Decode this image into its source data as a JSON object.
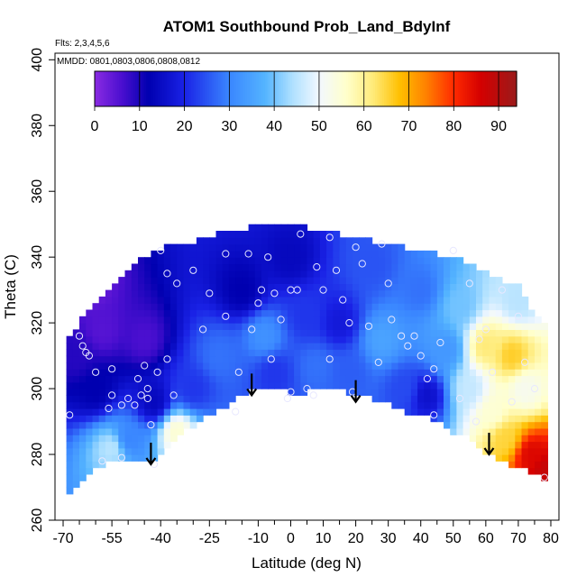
{
  "chart_data": {
    "type": "heatmap",
    "title": "ATOM1 Southbound Prob_Land_BdyInf",
    "subtitle_lines": [
      "Flts: 2,3,4,5,6",
      "MMDD: 0801,0803,0806,0808,0812"
    ],
    "xlabel": "Latitude (deg N)",
    "ylabel": "Theta (C)",
    "xlim": [
      -70,
      80
    ],
    "ylim": [
      260,
      400
    ],
    "x_major_ticks": [
      -70,
      -55,
      -40,
      -25,
      -10,
      0,
      10,
      20,
      30,
      40,
      50,
      60,
      70,
      80
    ],
    "x_minor_ticks": [
      -65,
      -60,
      -50,
      -45,
      -35,
      -30,
      -20,
      -15,
      -5,
      5,
      15,
      25,
      35,
      45,
      55,
      65,
      75
    ],
    "y_ticks": [
      260,
      280,
      300,
      320,
      340,
      360,
      380,
      400
    ],
    "colorbar": {
      "range": [
        0,
        94
      ],
      "ticks": [
        0,
        10,
        20,
        30,
        40,
        50,
        60,
        70,
        80,
        90
      ],
      "stops": [
        {
          "v": 0,
          "color": "#8a2be2"
        },
        {
          "v": 6,
          "color": "#4b0fd0"
        },
        {
          "v": 12,
          "color": "#0000b0"
        },
        {
          "v": 20,
          "color": "#1a22e6"
        },
        {
          "v": 30,
          "color": "#3a86ff"
        },
        {
          "v": 38,
          "color": "#54b4ff"
        },
        {
          "v": 44,
          "color": "#aee0ff"
        },
        {
          "v": 50,
          "color": "#f2f8ff"
        },
        {
          "v": 56,
          "color": "#ffffcc"
        },
        {
          "v": 62,
          "color": "#ffeb7a"
        },
        {
          "v": 68,
          "color": "#ffbf00"
        },
        {
          "v": 74,
          "color": "#ff7f00"
        },
        {
          "v": 80,
          "color": "#ff2a00"
        },
        {
          "v": 86,
          "color": "#d40000"
        },
        {
          "v": 94,
          "color": "#9b1b1b"
        }
      ]
    },
    "surface_boundary_theta": [
      [
        -69,
        267
      ],
      [
        -67,
        268
      ],
      [
        -63,
        273
      ],
      [
        -58,
        277
      ],
      [
        -53,
        278
      ],
      [
        -49,
        279
      ],
      [
        -45,
        279
      ],
      [
        -42,
        279
      ],
      [
        -40,
        281
      ],
      [
        -37,
        284
      ],
      [
        -33,
        287
      ],
      [
        -28,
        290
      ],
      [
        -23,
        293
      ],
      [
        -18,
        296
      ],
      [
        -13,
        299
      ],
      [
        -8,
        300
      ],
      [
        -3,
        300
      ],
      [
        0,
        299
      ],
      [
        5,
        299
      ],
      [
        10,
        300
      ],
      [
        15,
        300
      ],
      [
        20,
        298
      ],
      [
        25,
        297
      ],
      [
        30,
        296
      ],
      [
        35,
        293
      ],
      [
        40,
        292
      ],
      [
        45,
        290
      ],
      [
        50,
        287
      ],
      [
        55,
        285
      ],
      [
        60,
        280
      ],
      [
        65,
        278
      ],
      [
        70,
        276
      ],
      [
        75,
        274
      ],
      [
        79,
        272
      ]
    ],
    "top_boundary_theta": [
      [
        -69,
        313
      ],
      [
        -67,
        317
      ],
      [
        -63,
        323
      ],
      [
        -58,
        328
      ],
      [
        -53,
        333
      ],
      [
        -48,
        338
      ],
      [
        -43,
        341
      ],
      [
        -38,
        343
      ],
      [
        -33,
        344
      ],
      [
        -28,
        345
      ],
      [
        -23,
        347
      ],
      [
        -18,
        348
      ],
      [
        -13,
        349
      ],
      [
        -8,
        350
      ],
      [
        -3,
        350
      ],
      [
        0,
        350
      ],
      [
        5,
        349
      ],
      [
        10,
        348
      ],
      [
        15,
        347
      ],
      [
        20,
        346
      ],
      [
        25,
        345
      ],
      [
        30,
        344
      ],
      [
        35,
        343
      ],
      [
        40,
        342
      ],
      [
        45,
        341
      ],
      [
        50,
        340
      ],
      [
        55,
        338
      ],
      [
        60,
        335
      ],
      [
        65,
        333
      ],
      [
        70,
        331
      ],
      [
        75,
        323
      ],
      [
        79,
        318
      ]
    ],
    "probability_anchors": [
      {
        "lat": -62,
        "theta": 332,
        "p": 3
      },
      {
        "lat": -58,
        "theta": 318,
        "p": 5
      },
      {
        "lat": -66,
        "theta": 310,
        "p": 9
      },
      {
        "lat": -60,
        "theta": 300,
        "p": 12
      },
      {
        "lat": -55,
        "theta": 282,
        "p": 45
      },
      {
        "lat": -50,
        "theta": 285,
        "p": 30
      },
      {
        "lat": -45,
        "theta": 315,
        "p": 6
      },
      {
        "lat": -42,
        "theta": 296,
        "p": 14
      },
      {
        "lat": -35,
        "theta": 287,
        "p": 55
      },
      {
        "lat": -30,
        "theta": 300,
        "p": 22
      },
      {
        "lat": -22,
        "theta": 310,
        "p": 28
      },
      {
        "lat": -15,
        "theta": 330,
        "p": 12
      },
      {
        "lat": -8,
        "theta": 316,
        "p": 32
      },
      {
        "lat": -5,
        "theta": 305,
        "p": 22
      },
      {
        "lat": 0,
        "theta": 340,
        "p": 14
      },
      {
        "lat": 5,
        "theta": 322,
        "p": 22
      },
      {
        "lat": 8,
        "theta": 307,
        "p": 28
      },
      {
        "lat": 15,
        "theta": 320,
        "p": 18
      },
      {
        "lat": 18,
        "theta": 305,
        "p": 26
      },
      {
        "lat": 25,
        "theta": 338,
        "p": 25
      },
      {
        "lat": 28,
        "theta": 315,
        "p": 35
      },
      {
        "lat": 35,
        "theta": 300,
        "p": 24
      },
      {
        "lat": 40,
        "theta": 330,
        "p": 28
      },
      {
        "lat": 42,
        "theta": 298,
        "p": 16
      },
      {
        "lat": 48,
        "theta": 312,
        "p": 33
      },
      {
        "lat": 52,
        "theta": 325,
        "p": 40
      },
      {
        "lat": 55,
        "theta": 300,
        "p": 46
      },
      {
        "lat": 60,
        "theta": 313,
        "p": 62
      },
      {
        "lat": 62,
        "theta": 293,
        "p": 55
      },
      {
        "lat": 68,
        "theta": 310,
        "p": 66
      },
      {
        "lat": 66,
        "theta": 285,
        "p": 65
      },
      {
        "lat": 72,
        "theta": 300,
        "p": 52
      },
      {
        "lat": 74,
        "theta": 280,
        "p": 85
      },
      {
        "lat": 78,
        "theta": 275,
        "p": 88
      },
      {
        "lat": 70,
        "theta": 327,
        "p": 45
      }
    ],
    "observations": [
      [
        -65,
        316
      ],
      [
        -64,
        313
      ],
      [
        -63,
        311
      ],
      [
        -62,
        310
      ],
      [
        -60,
        305
      ],
      [
        -55,
        306
      ],
      [
        -55,
        298
      ],
      [
        -52,
        295
      ],
      [
        -50,
        297
      ],
      [
        -46,
        298
      ],
      [
        -44,
        300
      ],
      [
        -47,
        303
      ],
      [
        -45,
        307
      ],
      [
        -41,
        305
      ],
      [
        -38,
        309
      ],
      [
        -36,
        298
      ],
      [
        -48,
        295
      ],
      [
        -44,
        297
      ],
      [
        -40,
        342
      ],
      [
        -38,
        335
      ],
      [
        -27,
        318
      ],
      [
        -20,
        341
      ],
      [
        -13,
        341
      ],
      [
        -10,
        326
      ],
      [
        -7,
        340
      ],
      [
        -5,
        329
      ],
      [
        -3,
        321
      ],
      [
        0,
        330
      ],
      [
        2,
        330
      ],
      [
        -1,
        297
      ],
      [
        0,
        299
      ],
      [
        5,
        300
      ],
      [
        10,
        330
      ],
      [
        12,
        346
      ],
      [
        14,
        336
      ],
      [
        16,
        327
      ],
      [
        18,
        320
      ],
      [
        20,
        343
      ],
      [
        22,
        338
      ],
      [
        28,
        344
      ],
      [
        30,
        332
      ],
      [
        34,
        316
      ],
      [
        38,
        316
      ],
      [
        40,
        310
      ],
      [
        42,
        303
      ],
      [
        44,
        292
      ],
      [
        46,
        314
      ],
      [
        50,
        342
      ],
      [
        55,
        332
      ],
      [
        58,
        315
      ],
      [
        60,
        318
      ],
      [
        65,
        330
      ],
      [
        70,
        322
      ],
      [
        72,
        308
      ],
      [
        75,
        300
      ],
      [
        -58,
        278
      ],
      [
        -52,
        279
      ],
      [
        -42,
        277
      ],
      [
        -16,
        305
      ],
      [
        -30,
        336
      ],
      [
        -20,
        322
      ],
      [
        -25,
        329
      ],
      [
        -12,
        318
      ],
      [
        -17,
        293
      ],
      [
        -35,
        332
      ],
      [
        -9,
        330
      ],
      [
        7,
        298
      ],
      [
        12,
        309
      ],
      [
        24,
        319
      ],
      [
        31,
        321
      ],
      [
        36,
        313
      ],
      [
        44,
        306
      ],
      [
        52,
        297
      ],
      [
        57,
        290
      ],
      [
        62,
        305
      ],
      [
        68,
        296
      ],
      [
        78,
        273
      ],
      [
        -68,
        292
      ],
      [
        -56,
        294
      ],
      [
        -43,
        289
      ],
      [
        3,
        347
      ],
      [
        8,
        337
      ],
      [
        -6,
        309
      ],
      [
        19,
        299
      ],
      [
        27,
        308
      ]
    ],
    "arrows": [
      {
        "lat": -43,
        "theta": 277
      },
      {
        "lat": -12,
        "theta": 298
      },
      {
        "lat": 20,
        "theta": 296
      },
      {
        "lat": 61,
        "theta": 280
      }
    ]
  }
}
